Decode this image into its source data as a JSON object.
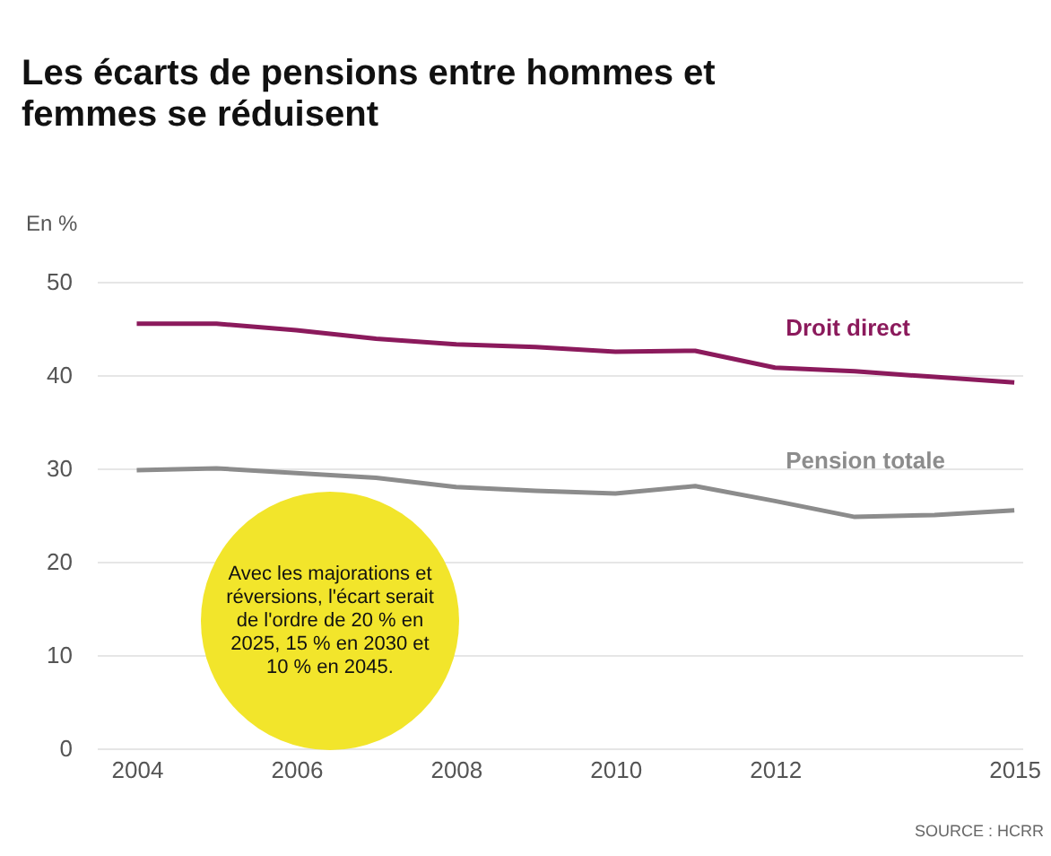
{
  "chart_data": {
    "type": "line",
    "title": "Les écarts de pensions entre hommes et femmes se réduisent",
    "ylabel": "En %",
    "x": [
      2004,
      2005,
      2006,
      2007,
      2008,
      2009,
      2010,
      2011,
      2012,
      2013,
      2014,
      2015
    ],
    "series": [
      {
        "name": "Droit direct",
        "color": "#8b1a5c",
        "values": [
          45.5,
          45.5,
          44.8,
          43.9,
          43.3,
          43.0,
          42.5,
          42.6,
          40.8,
          40.4,
          39.8,
          39.2
        ]
      },
      {
        "name": "Pension totale",
        "color": "#8c8c8c",
        "values": [
          29.8,
          30.0,
          29.5,
          29.0,
          28.0,
          27.6,
          27.3,
          28.1,
          26.5,
          24.8,
          25.0,
          25.5
        ]
      }
    ],
    "xlim": [
      2003.5,
      2015.1
    ],
    "xticks": [
      2004,
      2006,
      2008,
      2010,
      2012,
      2015
    ],
    "ylim": [
      0,
      50
    ],
    "yticks": [
      0,
      10,
      20,
      30,
      40,
      50
    ],
    "grid": "y",
    "marker": "none",
    "line_style": "solid",
    "legend": false,
    "annotations": [
      "Avec les majorations et réversions, l'écart serait de l'ordre de 20 % en 2025, 15 % en 2030 et 10 % en 2045.",
      "SOURCE : HCRR"
    ]
  }
}
